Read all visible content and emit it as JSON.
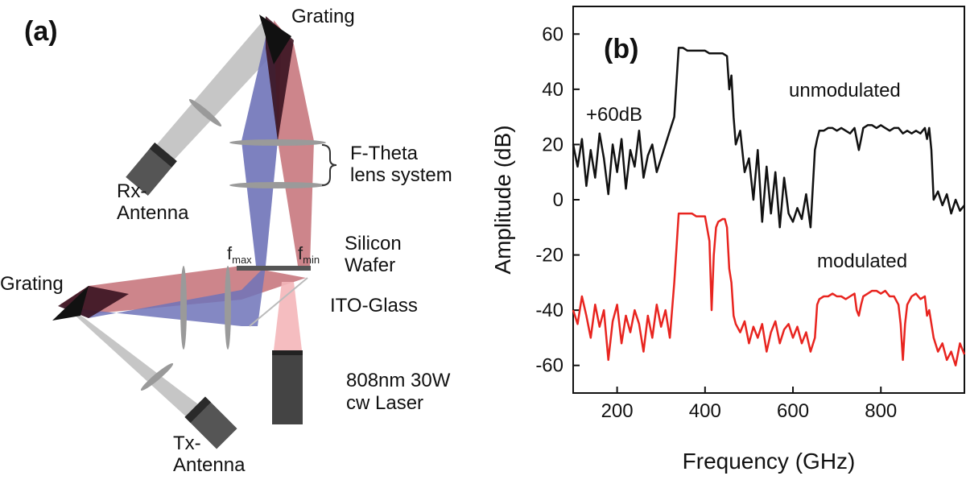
{
  "panel_a": {
    "label": "(a)",
    "labels": {
      "grating_top": "Grating",
      "grating_left": "Grating",
      "rx_antenna_line1": "Rx-",
      "rx_antenna_line2": "Antenna",
      "tx_antenna_line1": "Tx-",
      "tx_antenna_line2": "Antenna",
      "ftheta_line1": "F-Theta",
      "ftheta_line2": "lens system",
      "wafer_line1": "Silicon",
      "wafer_line2": "Wafer",
      "ito": "ITO-Glass",
      "laser_line1": "808nm 30W",
      "laser_line2": "cw Laser",
      "fmax_main": "f",
      "fmax_sub": "max",
      "fmin_main": "f",
      "fmin_sub": "min"
    },
    "colors": {
      "blue_beam": "#6f73b8",
      "red_beam": "#c0666e",
      "grey_beam": "#b8b8b8",
      "dark_beam": "#3a1320",
      "laser_body": "#444444",
      "laser_beam": "#f4b6b9"
    }
  },
  "chart_data": {
    "type": "line",
    "panel_label": "(b)",
    "xlabel": "Frequency (GHz)",
    "ylabel": "Amplitude (dB)",
    "xlim": [
      100,
      990
    ],
    "ylim": [
      -70,
      70
    ],
    "xticks": [
      200,
      400,
      600,
      800
    ],
    "yticks": [
      -60,
      -40,
      -20,
      0,
      20,
      40,
      60
    ],
    "annotations": {
      "offset": "+60dB",
      "unmodulated": "unmodulated",
      "modulated": "modulated"
    },
    "series": [
      {
        "name": "unmodulated",
        "color": "#111111",
        "x": [
          100,
          110,
          120,
          130,
          140,
          150,
          160,
          170,
          180,
          190,
          200,
          210,
          220,
          230,
          240,
          250,
          260,
          270,
          280,
          290,
          300,
          310,
          320,
          330,
          340,
          350,
          360,
          370,
          380,
          390,
          400,
          410,
          420,
          430,
          440,
          450,
          455,
          460,
          465,
          470,
          480,
          490,
          500,
          510,
          520,
          530,
          540,
          550,
          560,
          570,
          580,
          590,
          600,
          610,
          620,
          630,
          640,
          650,
          655,
          660,
          670,
          680,
          690,
          700,
          710,
          720,
          730,
          740,
          745,
          750,
          755,
          760,
          770,
          780,
          790,
          800,
          810,
          820,
          830,
          840,
          850,
          860,
          870,
          880,
          890,
          900,
          905,
          910,
          915,
          920,
          930,
          940,
          950,
          960,
          970,
          980,
          990
        ],
        "values": [
          20,
          12,
          22,
          5,
          18,
          8,
          24,
          15,
          2,
          20,
          10,
          22,
          4,
          18,
          12,
          25,
          8,
          16,
          20,
          10,
          15,
          20,
          25,
          30,
          55,
          55,
          54,
          54,
          54,
          54,
          54,
          53,
          53,
          53,
          53,
          52,
          40,
          45,
          30,
          20,
          25,
          10,
          15,
          0,
          18,
          -8,
          12,
          -5,
          10,
          -10,
          8,
          -5,
          -8,
          -3,
          -7,
          2,
          -10,
          18,
          22,
          25,
          25,
          26,
          26,
          25,
          26,
          25,
          24,
          26,
          22,
          18,
          22,
          26,
          27,
          27,
          26,
          27,
          26,
          25,
          26,
          26,
          24,
          25,
          24,
          25,
          24,
          26,
          22,
          26,
          18,
          0,
          3,
          -2,
          2,
          -5,
          0,
          -4,
          -2
        ]
      },
      {
        "name": "modulated",
        "color": "#e8241f",
        "x": [
          100,
          110,
          120,
          130,
          140,
          150,
          160,
          170,
          180,
          190,
          200,
          210,
          220,
          230,
          240,
          250,
          260,
          270,
          280,
          290,
          300,
          310,
          320,
          330,
          340,
          350,
          360,
          370,
          380,
          390,
          400,
          410,
          415,
          420,
          425,
          430,
          440,
          445,
          450,
          455,
          460,
          465,
          470,
          480,
          490,
          500,
          510,
          520,
          530,
          540,
          550,
          560,
          570,
          580,
          590,
          600,
          610,
          620,
          630,
          640,
          650,
          655,
          660,
          670,
          680,
          690,
          700,
          710,
          720,
          730,
          740,
          745,
          750,
          755,
          760,
          770,
          780,
          790,
          800,
          810,
          820,
          830,
          840,
          845,
          850,
          855,
          860,
          870,
          880,
          890,
          900,
          905,
          910,
          920,
          930,
          940,
          950,
          960,
          970,
          980,
          990
        ],
        "values": [
          -40,
          -45,
          -35,
          -42,
          -50,
          -38,
          -46,
          -40,
          -58,
          -44,
          -38,
          -52,
          -42,
          -48,
          -40,
          -45,
          -55,
          -42,
          -50,
          -38,
          -46,
          -40,
          -50,
          -30,
          -5,
          -5,
          -5,
          -5,
          -6,
          -6,
          -6,
          -15,
          -40,
          -20,
          -10,
          -8,
          -7,
          -7,
          -10,
          -25,
          -30,
          -42,
          -45,
          -48,
          -44,
          -52,
          -46,
          -50,
          -45,
          -55,
          -48,
          -44,
          -52,
          -47,
          -45,
          -50,
          -46,
          -52,
          -48,
          -55,
          -50,
          -38,
          -36,
          -35,
          -35,
          -34,
          -35,
          -35,
          -36,
          -35,
          -34,
          -40,
          -42,
          -38,
          -35,
          -34,
          -33,
          -33,
          -34,
          -33,
          -35,
          -35,
          -38,
          -45,
          -58,
          -45,
          -38,
          -35,
          -34,
          -36,
          -35,
          -42,
          -40,
          -50,
          -55,
          -52,
          -58,
          -55,
          -60,
          -52,
          -56
        ]
      }
    ]
  }
}
